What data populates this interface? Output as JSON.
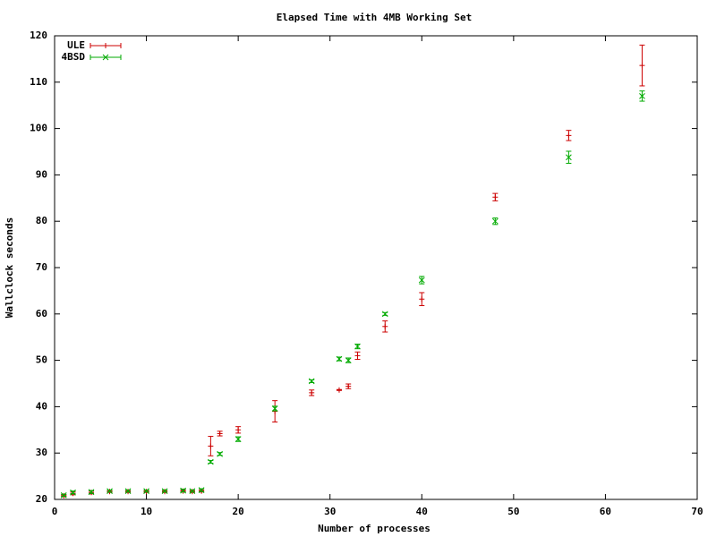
{
  "chart_data": {
    "type": "errorbar",
    "title": "Elapsed Time with 4MB Working Set",
    "x_label": "Number of processes",
    "y_label": "Wallclock seconds",
    "x": [
      1,
      2,
      4,
      6,
      8,
      10,
      12,
      14,
      15,
      16,
      17,
      18,
      20,
      24,
      28,
      31,
      32,
      33,
      36,
      40,
      48,
      56,
      64
    ],
    "series": [
      {
        "name": "ULE",
        "color": "#cc0000",
        "marker": "plus",
        "values": [
          20.8,
          21.3,
          21.5,
          21.7,
          21.7,
          21.7,
          21.7,
          21.8,
          21.7,
          21.8,
          31.5,
          34.2,
          35.0,
          39.0,
          43.0,
          43.6,
          44.4,
          51.0,
          57.3,
          63.2,
          85.2,
          98.5,
          113.6
        ],
        "errors": [
          0.2,
          0.3,
          0.3,
          0.2,
          0.2,
          0.2,
          0.2,
          0.2,
          0.2,
          0.2,
          2.1,
          0.5,
          0.7,
          2.3,
          0.6,
          0.1,
          0.5,
          0.8,
          1.2,
          1.4,
          0.8,
          1.1,
          4.4
        ]
      },
      {
        "name": "4BSD",
        "color": "#00aa00",
        "marker": "cross",
        "values": [
          20.9,
          21.5,
          21.6,
          21.8,
          21.8,
          21.8,
          21.8,
          21.9,
          21.8,
          22.0,
          28.1,
          29.8,
          33.0,
          39.6,
          45.5,
          50.3,
          50.0,
          53.0,
          60.0,
          67.3,
          80.0,
          93.8,
          107.0
        ],
        "errors": [
          0.2,
          0.3,
          0.3,
          0.2,
          0.2,
          0.2,
          0.2,
          0.3,
          0.2,
          0.3,
          0.3,
          0.3,
          0.5,
          0.5,
          0.3,
          0.4,
          0.5,
          0.5,
          0.3,
          0.8,
          0.7,
          1.3,
          1.1
        ]
      }
    ],
    "xlim": [
      0,
      70
    ],
    "xticks": [
      0,
      10,
      20,
      30,
      40,
      50,
      60,
      70
    ],
    "ylim": [
      20,
      120
    ],
    "yticks": [
      20,
      30,
      40,
      50,
      60,
      70,
      80,
      90,
      100,
      110,
      120
    ],
    "legend": "top-left"
  }
}
